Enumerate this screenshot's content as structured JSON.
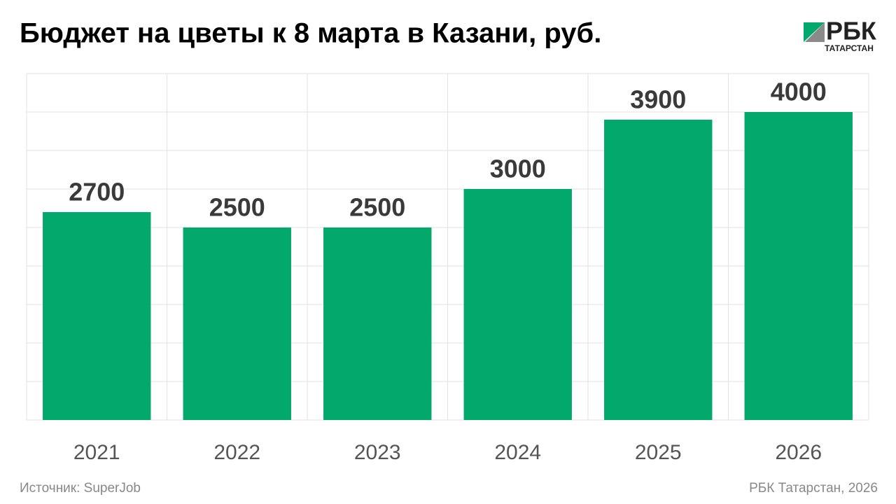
{
  "chart_data": {
    "type": "bar",
    "title": "Бюджет на цветы к 8 марта в Казани, руб.",
    "categories": [
      "2021",
      "2022",
      "2023",
      "2024",
      "2025",
      "2026"
    ],
    "values": [
      2700,
      2500,
      2500,
      3000,
      3900,
      4000
    ],
    "color": "#02a86c",
    "ylim": [
      0,
      4500
    ],
    "yticks": [
      0,
      500,
      1000,
      1500,
      2000,
      2500,
      3000,
      3500,
      4000,
      4500
    ],
    "grid": true,
    "source": "Источник: SuperJob",
    "credit": "РБК Татарстан, 2026",
    "logo": {
      "name": "РБК",
      "region": "ТАТАРСТАН"
    }
  }
}
